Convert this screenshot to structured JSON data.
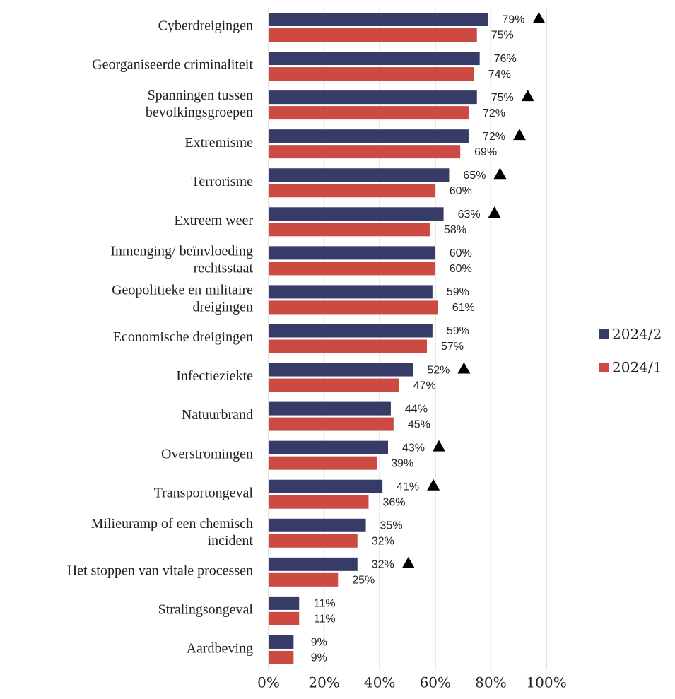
{
  "chart_data": {
    "type": "hbar",
    "categories": [
      "Cyberdreigingen",
      "Georganiseerde criminaliteit",
      "Spanningen tussen\nbevolkingsgroepen",
      "Extremisme",
      "Terrorisme",
      "Extreem weer",
      "Inmenging/ beïnvloeding\nrechtsstaat",
      "Geopolitieke en militaire\ndreigingen",
      "Economische dreigingen",
      "Infectieziekte",
      "Natuurbrand",
      "Overstromingen",
      "Transportongeval",
      "Milieuramp of een chemisch\nincident",
      "Het stoppen van vitale processen",
      "Stralingsongeval",
      "Aardbeving"
    ],
    "series": [
      {
        "name": "2024/2",
        "color": "#363b68",
        "values": [
          79,
          76,
          75,
          72,
          65,
          63,
          60,
          59,
          59,
          52,
          44,
          43,
          41,
          35,
          32,
          11,
          9
        ],
        "value_labels": [
          "79%",
          "76%",
          "75%",
          "72%",
          "65%",
          "63%",
          "60%",
          "59%",
          "59%",
          "52%",
          "44%",
          "43%",
          "41%",
          "35%",
          "32%",
          "11%",
          "9%"
        ],
        "marked": [
          true,
          false,
          true,
          true,
          true,
          true,
          false,
          false,
          false,
          true,
          false,
          true,
          true,
          false,
          true,
          false,
          false
        ]
      },
      {
        "name": "2024/1",
        "color": "#cc4a42",
        "values": [
          75,
          74,
          72,
          69,
          60,
          58,
          60,
          61,
          57,
          47,
          45,
          39,
          36,
          32,
          25,
          11,
          9
        ],
        "value_labels": [
          "75%",
          "74%",
          "72%",
          "69%",
          "60%",
          "58%",
          "60%",
          "61%",
          "57%",
          "47%",
          "45%",
          "39%",
          "36%",
          "32%",
          "25%",
          "11%",
          "9%"
        ]
      }
    ],
    "xlim": [
      0,
      100
    ],
    "xticks": [
      {
        "value": 0,
        "label": "0%"
      },
      {
        "value": 20,
        "label": "20%"
      },
      {
        "value": 40,
        "label": "40%"
      },
      {
        "value": 60,
        "label": "60%"
      },
      {
        "value": 80,
        "label": "80%"
      },
      {
        "value": 100,
        "label": "100%"
      }
    ],
    "grid": true,
    "legend": "right"
  }
}
